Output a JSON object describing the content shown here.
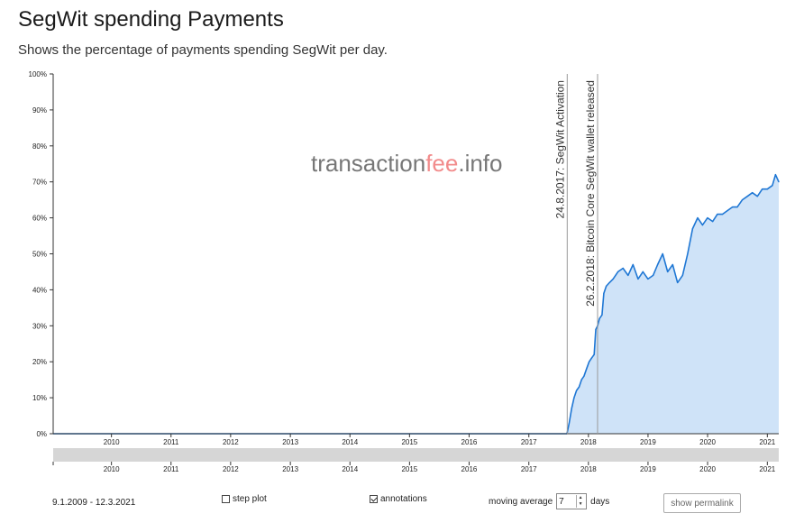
{
  "page": {
    "title": "SegWit spending Payments",
    "subtitle": "Shows the percentage of payments spending SegWit per day."
  },
  "watermark": {
    "part1": "transaction",
    "part2": "fee",
    "part3": ".info"
  },
  "colors": {
    "line": "#1f77d4",
    "area": "#cfe3f8",
    "navigator_bg": "#d6d6d6",
    "watermark_gray": "#777777",
    "watermark_accent": "#f28b8b"
  },
  "controls": {
    "date_range": "9.1.2009 - 12.3.2021",
    "step_plot_label": "step plot",
    "step_plot_checked": false,
    "annotations_label": "annotations",
    "annotations_checked": true,
    "moving_average_label": "moving average",
    "moving_average_value": "7",
    "days_label": "days",
    "permalink_label": "show permalink"
  },
  "chart_data": {
    "type": "area",
    "title": "SegWit spending Payments",
    "ylabel": "",
    "xlabel": "",
    "x_range": [
      "2009-01-09",
      "2021-03-12"
    ],
    "ylim": [
      0,
      100
    ],
    "y_ticks": [
      "0%",
      "10%",
      "20%",
      "30%",
      "40%",
      "50%",
      "60%",
      "70%",
      "80%",
      "90%",
      "100%"
    ],
    "x_ticks": [
      "2010",
      "2011",
      "2012",
      "2013",
      "2014",
      "2015",
      "2016",
      "2017",
      "2018",
      "2019",
      "2020",
      "2021"
    ],
    "grid": false,
    "annotations": [
      {
        "date": "2017-08-24",
        "label": "24.8.2017: SegWit Activation"
      },
      {
        "date": "2018-02-26",
        "label": "26.2.2018: Bitcoin Core SegWit wallet released"
      }
    ],
    "series": [
      {
        "values_format": "[date, percent]",
        "points": [
          [
            "2009-01-09",
            0
          ],
          [
            "2017-08-20",
            0
          ],
          [
            "2017-08-24",
            0.3
          ],
          [
            "2017-09-05",
            3
          ],
          [
            "2017-09-20",
            7
          ],
          [
            "2017-10-05",
            10
          ],
          [
            "2017-10-20",
            12
          ],
          [
            "2017-11-05",
            13
          ],
          [
            "2017-11-20",
            15
          ],
          [
            "2017-12-05",
            16
          ],
          [
            "2017-12-20",
            18
          ],
          [
            "2018-01-05",
            20
          ],
          [
            "2018-01-20",
            21
          ],
          [
            "2018-02-05",
            22
          ],
          [
            "2018-02-15",
            29
          ],
          [
            "2018-02-26",
            30
          ],
          [
            "2018-03-10",
            32
          ],
          [
            "2018-03-25",
            33
          ],
          [
            "2018-04-05",
            39
          ],
          [
            "2018-04-20",
            41
          ],
          [
            "2018-05-10",
            42
          ],
          [
            "2018-06-01",
            43
          ],
          [
            "2018-07-01",
            45
          ],
          [
            "2018-08-01",
            46
          ],
          [
            "2018-09-01",
            44
          ],
          [
            "2018-10-01",
            47
          ],
          [
            "2018-11-01",
            43
          ],
          [
            "2018-12-01",
            45
          ],
          [
            "2019-01-01",
            43
          ],
          [
            "2019-02-01",
            44
          ],
          [
            "2019-03-01",
            47
          ],
          [
            "2019-04-01",
            50
          ],
          [
            "2019-05-01",
            45
          ],
          [
            "2019-06-01",
            47
          ],
          [
            "2019-07-01",
            42
          ],
          [
            "2019-08-01",
            44
          ],
          [
            "2019-09-01",
            50
          ],
          [
            "2019-10-01",
            57
          ],
          [
            "2019-11-01",
            60
          ],
          [
            "2019-12-01",
            58
          ],
          [
            "2020-01-01",
            60
          ],
          [
            "2020-02-01",
            59
          ],
          [
            "2020-03-01",
            61
          ],
          [
            "2020-04-01",
            61
          ],
          [
            "2020-05-01",
            62
          ],
          [
            "2020-06-01",
            63
          ],
          [
            "2020-07-01",
            63
          ],
          [
            "2020-08-01",
            65
          ],
          [
            "2020-09-01",
            66
          ],
          [
            "2020-10-01",
            67
          ],
          [
            "2020-11-01",
            66
          ],
          [
            "2020-12-01",
            68
          ],
          [
            "2021-01-01",
            68
          ],
          [
            "2021-02-01",
            69
          ],
          [
            "2021-02-20",
            72
          ],
          [
            "2021-03-12",
            70
          ]
        ]
      }
    ]
  }
}
